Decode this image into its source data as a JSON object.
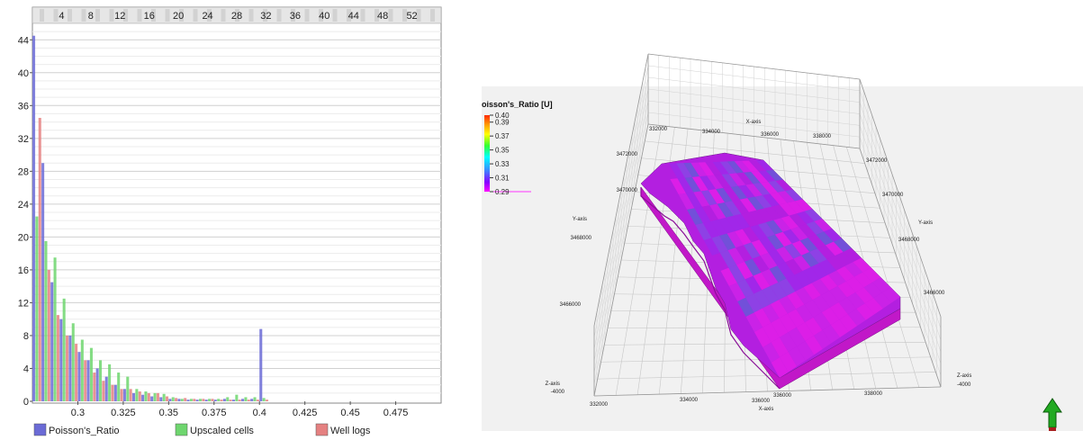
{
  "chart_data": [
    {
      "type": "bar",
      "subtype": "histogram",
      "xlim": [
        0.275,
        0.5
      ],
      "ylim": [
        0,
        46
      ],
      "y_ticks": [
        0,
        4,
        8,
        12,
        16,
        20,
        24,
        28,
        32,
        36,
        40,
        44
      ],
      "x_ticks": [
        "0.3",
        "0.325",
        "0.35",
        "0.375",
        "0.4",
        "0.425",
        "0.45",
        "0.475"
      ],
      "x_tick_values": [
        0.3,
        0.325,
        0.35,
        0.375,
        0.4,
        0.425,
        0.45,
        0.475
      ],
      "top_axis_ticks": [
        "4",
        "8",
        "12",
        "16",
        "20",
        "24",
        "28",
        "32",
        "36",
        "40",
        "44",
        "48",
        "52"
      ],
      "top_axis_range": [
        0,
        56
      ],
      "grid": true,
      "legend_placement": "bottom",
      "bin_width": 0.005,
      "bin_centers": [
        0.2775,
        0.2825,
        0.2875,
        0.2925,
        0.2975,
        0.3025,
        0.3075,
        0.3125,
        0.3175,
        0.3225,
        0.3275,
        0.3325,
        0.3375,
        0.3425,
        0.3475,
        0.3525,
        0.3575,
        0.3625,
        0.3675,
        0.3725,
        0.3775,
        0.3825,
        0.3875,
        0.3925,
        0.3975,
        0.4025
      ],
      "series": [
        {
          "name": "Poisson's_Ratio",
          "color": "#6b6bd6",
          "values": [
            44.5,
            29,
            14.5,
            10,
            8,
            6,
            5,
            4,
            3,
            2,
            1.5,
            1,
            0.8,
            0.6,
            0.5,
            0.3,
            0.3,
            0.2,
            0.2,
            0.2,
            0.2,
            0.3,
            0.2,
            0.3,
            0.3,
            8.8
          ]
        },
        {
          "name": "Upscaled cells",
          "color": "#6fd66f",
          "values": [
            22.5,
            19.5,
            17.5,
            12.5,
            9.5,
            7.5,
            6.5,
            5,
            4.5,
            3.5,
            3,
            1.5,
            1.2,
            1,
            0.9,
            0.5,
            0.3,
            0.3,
            0.3,
            0.3,
            0.3,
            0.5,
            0.8,
            0.5,
            0.5,
            0.4
          ]
        },
        {
          "name": "Well logs",
          "color": "#e58181",
          "values": [
            34.5,
            16,
            10.5,
            8,
            7,
            5,
            3.5,
            2.5,
            2,
            1.5,
            1.5,
            1.2,
            1,
            1,
            0.6,
            0.4,
            0.4,
            0.3,
            0.3,
            0.3,
            0.2,
            0.2,
            0.2,
            0.2,
            0.2,
            0.2
          ]
        }
      ]
    },
    {
      "type": "heatmap",
      "title": "oisson's_Ratio [U]",
      "colorbar_ticks": [
        "0.40",
        "0.39",
        "0.37",
        "0.35",
        "0.33",
        "0.31",
        "0.29"
      ],
      "colorbar_range": [
        0.29,
        0.4
      ],
      "colorbar_colors": [
        "#ff2a00",
        "#ff9900",
        "#ffff00",
        "#33ff33",
        "#00ffff",
        "#3399ff",
        "#8800ff",
        "#ff00ff"
      ],
      "surface_colors": [
        "#b31fe0",
        "#9e28ea",
        "#8a45e6",
        "#6a55d8",
        "#cc22e8",
        "#e01ee8"
      ],
      "axes": {
        "x_label": "X-axis",
        "y_label": "Y-axis",
        "z_label": "Z-axis",
        "x_top_ticks": [
          "332000",
          "334000",
          "336000",
          "338000"
        ],
        "x_bottom_ticks": [
          "332000",
          "334000",
          "336000",
          "338000"
        ],
        "y_left_ticks": [
          "3472000",
          "3470000",
          "3468000",
          "3466000"
        ],
        "y_right_ticks": [
          "3472000",
          "3470000",
          "3468000",
          "3466000"
        ],
        "z_left_tick": "-4000",
        "z_right_tick": "-4000"
      },
      "north_arrow_color": "#22aa22"
    }
  ]
}
